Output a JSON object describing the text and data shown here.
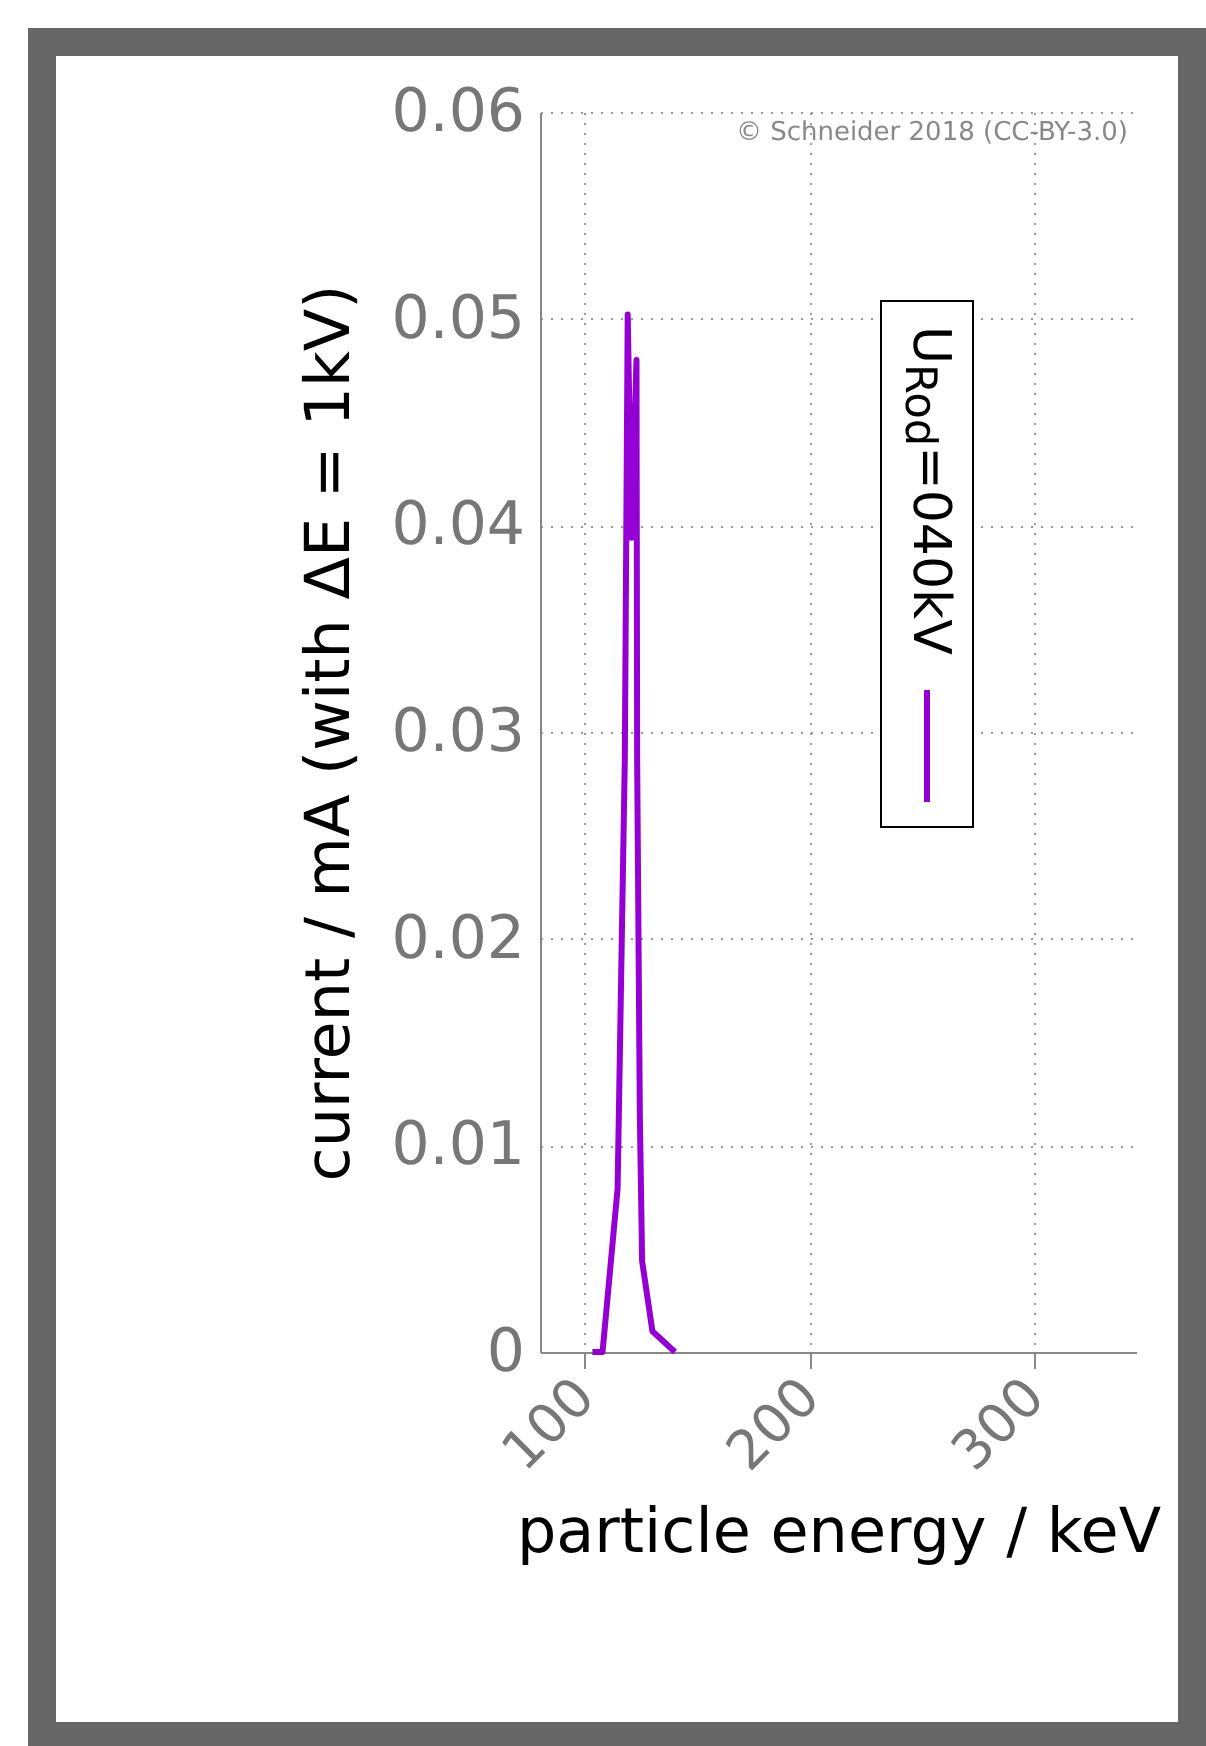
{
  "chart_data": {
    "type": "line",
    "xlabel": "particle energy / keV",
    "ylabel": "current / mA (with ΔE = 1kV)",
    "annotations": [
      "© Schneider 2018 (CC-BY-3.0)"
    ],
    "series": [
      {
        "name": "U$_{Rod}$=040kV",
        "color": "#9400d3",
        "x": [
          103.3,
          107.8,
          109,
          114.5,
          117.7,
          119,
          120.7,
          122.9,
          123.2,
          124.4,
          125.4,
          130,
          140
        ],
        "values": [
          0,
          0,
          0.0014,
          0.0079,
          0.0286,
          0.0502,
          0.0394,
          0.048,
          0.0286,
          0.0114,
          0.0044,
          0.001,
          0
        ]
      }
    ],
    "xlim": [
      80,
      345
    ],
    "xticks": [
      100,
      200,
      300
    ],
    "ylim": [
      0,
      0.06
    ],
    "yticks": [
      0,
      0.01,
      0.02,
      0.03,
      0.04,
      0.05,
      0.06
    ],
    "grid": true,
    "legend": "right"
  }
}
